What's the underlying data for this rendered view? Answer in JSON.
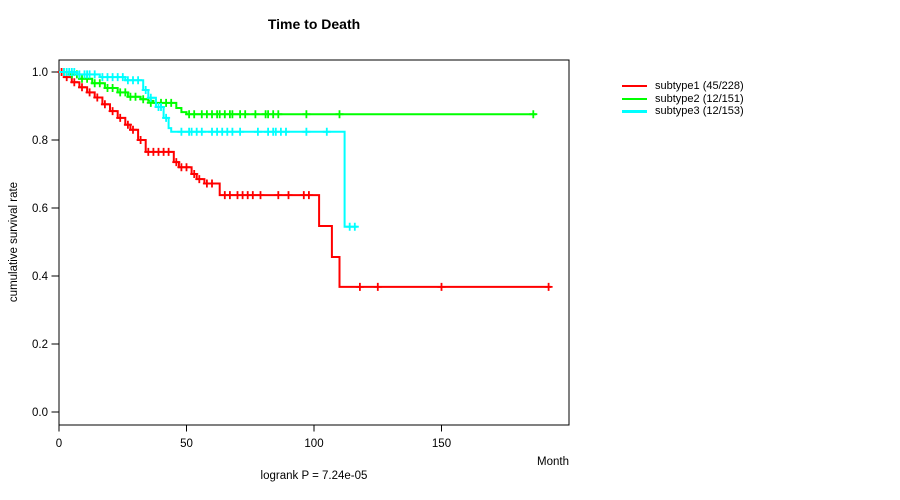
{
  "chart_data": {
    "type": "line",
    "subtype": "kaplan-meier-step-curves",
    "title": "Time to Death",
    "xlabel": "Month",
    "ylabel": "cumulative survival rate",
    "annotation": "logrank P = 7.24e-05",
    "xlim": [
      0,
      200
    ],
    "ylim": [
      0.0,
      1.0
    ],
    "xticks": [
      0,
      50,
      100,
      150
    ],
    "yticks": [
      0.0,
      0.2,
      0.4,
      0.6,
      0.8,
      1.0
    ],
    "grid": false,
    "legend_position": "right-outside",
    "series": [
      {
        "name": "subtype1 (45/228)",
        "events": 45,
        "n": 228,
        "color": "#ff0000",
        "end_month": 193,
        "steps": [
          [
            0,
            1.0
          ],
          [
            2,
            0.985
          ],
          [
            5,
            0.97
          ],
          [
            8,
            0.955
          ],
          [
            11,
            0.94
          ],
          [
            14,
            0.925
          ],
          [
            17,
            0.905
          ],
          [
            20,
            0.885
          ],
          [
            23,
            0.865
          ],
          [
            26,
            0.845
          ],
          [
            28,
            0.83
          ],
          [
            31,
            0.8
          ],
          [
            34,
            0.765
          ],
          [
            45,
            0.735
          ],
          [
            47,
            0.72
          ],
          [
            52,
            0.7
          ],
          [
            54,
            0.685
          ],
          [
            57,
            0.672
          ],
          [
            63,
            0.638
          ],
          [
            102,
            0.547
          ],
          [
            107,
            0.456
          ],
          [
            110,
            0.368
          ]
        ],
        "censors": [
          [
            1,
            1.0
          ],
          [
            3,
            0.985
          ],
          [
            6,
            0.97
          ],
          [
            9,
            0.955
          ],
          [
            12,
            0.94
          ],
          [
            15,
            0.925
          ],
          [
            18,
            0.905
          ],
          [
            21,
            0.885
          ],
          [
            24,
            0.865
          ],
          [
            27,
            0.845
          ],
          [
            29,
            0.83
          ],
          [
            32,
            0.8
          ],
          [
            35,
            0.765
          ],
          [
            37,
            0.765
          ],
          [
            39,
            0.765
          ],
          [
            41,
            0.765
          ],
          [
            43,
            0.765
          ],
          [
            46,
            0.735
          ],
          [
            48,
            0.72
          ],
          [
            50,
            0.72
          ],
          [
            53,
            0.7
          ],
          [
            55,
            0.685
          ],
          [
            58,
            0.672
          ],
          [
            60,
            0.672
          ],
          [
            65,
            0.638
          ],
          [
            67,
            0.638
          ],
          [
            70,
            0.638
          ],
          [
            72,
            0.638
          ],
          [
            74,
            0.638
          ],
          [
            76,
            0.638
          ],
          [
            79,
            0.638
          ],
          [
            86,
            0.638
          ],
          [
            90,
            0.638
          ],
          [
            96,
            0.638
          ],
          [
            98,
            0.638
          ],
          [
            118,
            0.368
          ],
          [
            125,
            0.368
          ],
          [
            150,
            0.368
          ],
          [
            192,
            0.368
          ]
        ]
      },
      {
        "name": "subtype2 (12/151)",
        "events": 12,
        "n": 151,
        "color": "#00ff00",
        "end_month": 187,
        "steps": [
          [
            0,
            1.0
          ],
          [
            4,
            0.993
          ],
          [
            8,
            0.98
          ],
          [
            13,
            0.967
          ],
          [
            18,
            0.953
          ],
          [
            23,
            0.94
          ],
          [
            27,
            0.927
          ],
          [
            32,
            0.92
          ],
          [
            35,
            0.915
          ],
          [
            37,
            0.909
          ],
          [
            46,
            0.894
          ],
          [
            48,
            0.882
          ],
          [
            50,
            0.876
          ]
        ],
        "censors": [
          [
            2,
            1.0
          ],
          [
            5,
            0.993
          ],
          [
            7,
            0.993
          ],
          [
            9,
            0.98
          ],
          [
            11,
            0.98
          ],
          [
            14,
            0.967
          ],
          [
            16,
            0.967
          ],
          [
            19,
            0.953
          ],
          [
            21,
            0.953
          ],
          [
            24,
            0.94
          ],
          [
            26,
            0.94
          ],
          [
            28,
            0.927
          ],
          [
            30,
            0.927
          ],
          [
            33,
            0.92
          ],
          [
            36,
            0.909
          ],
          [
            38,
            0.909
          ],
          [
            40,
            0.909
          ],
          [
            42,
            0.909
          ],
          [
            44,
            0.909
          ],
          [
            51,
            0.876
          ],
          [
            53,
            0.876
          ],
          [
            56,
            0.876
          ],
          [
            58,
            0.876
          ],
          [
            60,
            0.876
          ],
          [
            62,
            0.876
          ],
          [
            63,
            0.876
          ],
          [
            65,
            0.876
          ],
          [
            67,
            0.876
          ],
          [
            68,
            0.876
          ],
          [
            71,
            0.876
          ],
          [
            73,
            0.876
          ],
          [
            77,
            0.876
          ],
          [
            81,
            0.876
          ],
          [
            82,
            0.876
          ],
          [
            84,
            0.876
          ],
          [
            86,
            0.876
          ],
          [
            97,
            0.876
          ],
          [
            110,
            0.876
          ],
          [
            186,
            0.876
          ]
        ]
      },
      {
        "name": "subtype3 (12/153)",
        "events": 12,
        "n": 153,
        "color": "#00ffff",
        "end_month": 117,
        "steps": [
          [
            0,
            1.0
          ],
          [
            7,
            0.993
          ],
          [
            16,
            0.985
          ],
          [
            26,
            0.976
          ],
          [
            33,
            0.947
          ],
          [
            35,
            0.924
          ],
          [
            38,
            0.897
          ],
          [
            41,
            0.865
          ],
          [
            43,
            0.835
          ],
          [
            44,
            0.824
          ],
          [
            112,
            0.545
          ]
        ],
        "censors": [
          [
            2,
            1.0
          ],
          [
            3,
            1.0
          ],
          [
            4,
            1.0
          ],
          [
            5,
            1.0
          ],
          [
            6,
            1.0
          ],
          [
            8,
            0.993
          ],
          [
            10,
            0.993
          ],
          [
            11,
            0.993
          ],
          [
            12,
            0.993
          ],
          [
            14,
            0.993
          ],
          [
            17,
            0.985
          ],
          [
            19,
            0.985
          ],
          [
            21,
            0.985
          ],
          [
            23,
            0.985
          ],
          [
            25,
            0.985
          ],
          [
            27,
            0.976
          ],
          [
            29,
            0.976
          ],
          [
            31,
            0.976
          ],
          [
            34,
            0.947
          ],
          [
            36,
            0.924
          ],
          [
            39,
            0.897
          ],
          [
            40,
            0.897
          ],
          [
            42,
            0.865
          ],
          [
            48,
            0.824
          ],
          [
            51,
            0.824
          ],
          [
            52,
            0.824
          ],
          [
            54,
            0.824
          ],
          [
            56,
            0.824
          ],
          [
            60,
            0.824
          ],
          [
            62,
            0.824
          ],
          [
            64,
            0.824
          ],
          [
            66,
            0.824
          ],
          [
            68,
            0.824
          ],
          [
            71,
            0.824
          ],
          [
            78,
            0.824
          ],
          [
            82,
            0.824
          ],
          [
            84,
            0.824
          ],
          [
            85,
            0.824
          ],
          [
            87,
            0.824
          ],
          [
            89,
            0.824
          ],
          [
            97,
            0.824
          ],
          [
            105,
            0.824
          ],
          [
            114,
            0.545
          ],
          [
            116,
            0.545
          ]
        ]
      }
    ]
  }
}
